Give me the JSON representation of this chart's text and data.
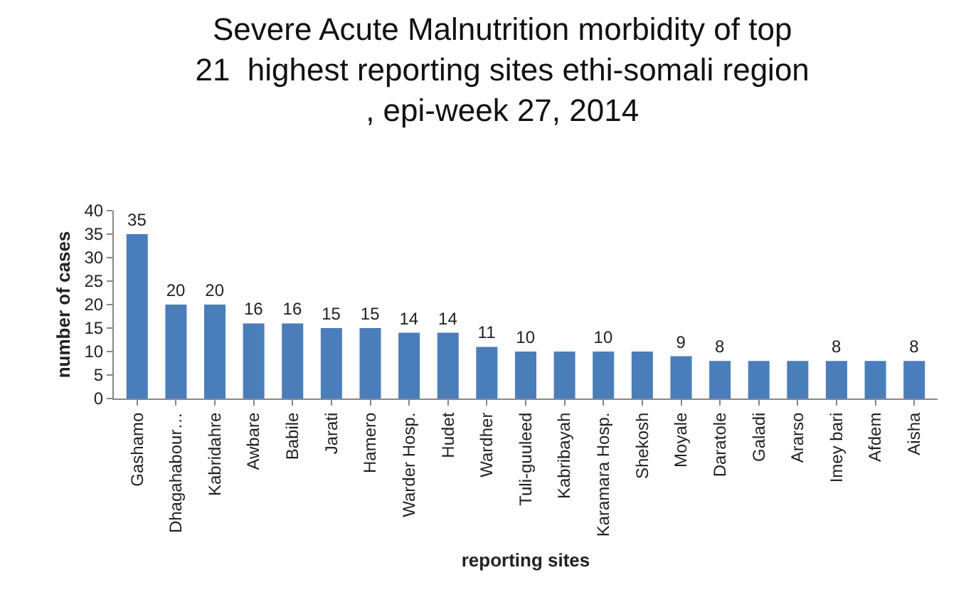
{
  "chart_data": {
    "type": "bar",
    "title": "Severe Acute Malnutrition morbidity of top\n21  highest reporting sites ethi-somali region\n, epi-week 27, 2014",
    "xlabel": "reporting sites",
    "ylabel": "number of cases",
    "categories": [
      "Gashamo",
      "Dhagahabour…",
      "Kabridahre",
      "Awbare",
      "Babile",
      "Jarati",
      "Hamero",
      "Warder Hosp.",
      "Hudet",
      "Wardher",
      "Tuli-guuleed",
      "Kabribayah",
      "Karamara Hosp.",
      "Shekosh",
      "Moyale",
      "Daratole",
      "Galadi",
      "Ararso",
      "Imey bari",
      "Afdem",
      "Aisha"
    ],
    "values": [
      35,
      20,
      20,
      16,
      16,
      15,
      15,
      14,
      14,
      11,
      10,
      10,
      10,
      10,
      9,
      8,
      8,
      8,
      8,
      8,
      8
    ],
    "value_labels": [
      "35",
      "20",
      "20",
      "16",
      "16",
      "15",
      "15",
      "14",
      "14",
      "11",
      "10",
      null,
      "10",
      null,
      "9",
      "8",
      null,
      null,
      "8",
      null,
      "8"
    ],
    "color": "#4a7ebb",
    "ylim": [
      0,
      40
    ],
    "yticks": [
      0,
      5,
      10,
      15,
      20,
      25,
      30,
      35,
      40
    ],
    "legend": false
  }
}
